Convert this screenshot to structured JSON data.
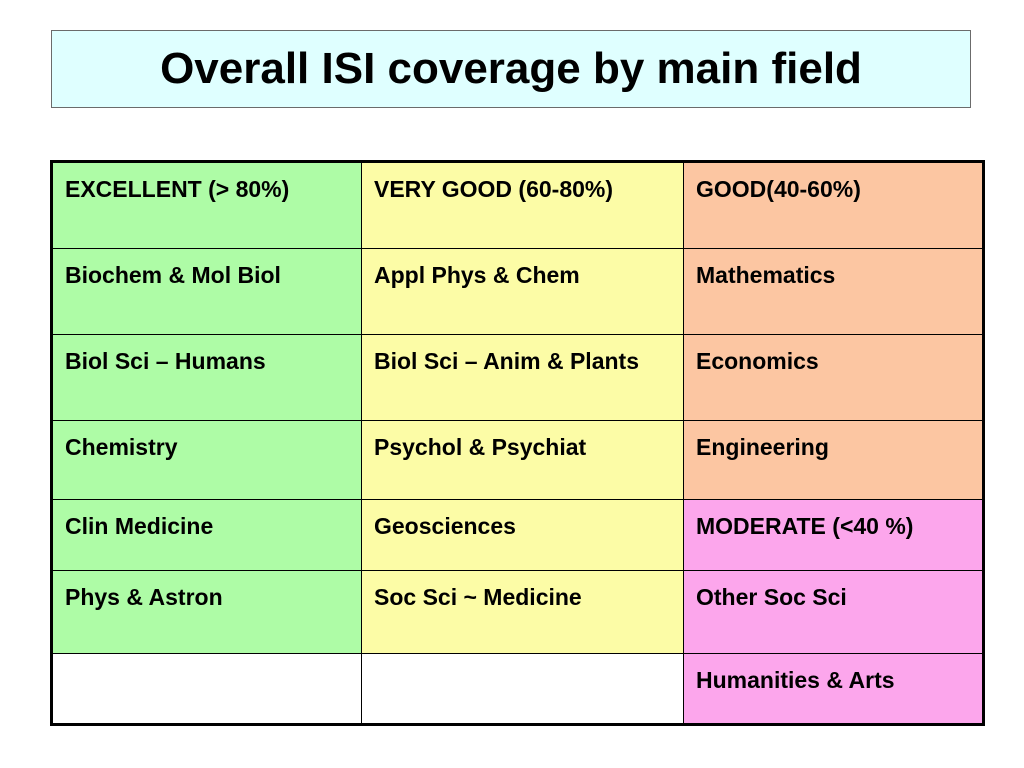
{
  "title": "Overall ISI coverage by main field",
  "colors": {
    "title_background": "#dfffff",
    "excellent": "#aefca6",
    "very_good": "#fcfca6",
    "good": "#fcc6a2",
    "moderate": "#fca6ec",
    "empty": "#ffffff"
  },
  "table": {
    "rows": [
      [
        "EXCELLENT (> 80%)",
        "VERY GOOD (60-80%)",
        "GOOD(40-60%)"
      ],
      [
        "Biochem & Mol Biol",
        "Appl Phys & Chem",
        "Mathematics"
      ],
      [
        "Biol Sci – Humans",
        "Biol Sci – Anim & Plants",
        "Economics"
      ],
      [
        "Chemistry",
        "Psychol & Psychiat",
        "Engineering"
      ],
      [
        "Clin Medicine",
        "Geosciences",
        "MODERATE (<40 %)"
      ],
      [
        "Phys & Astron",
        "Soc Sci ~ Medicine",
        "Other Soc Sci"
      ],
      [
        "",
        "",
        "Humanities & Arts"
      ]
    ]
  }
}
